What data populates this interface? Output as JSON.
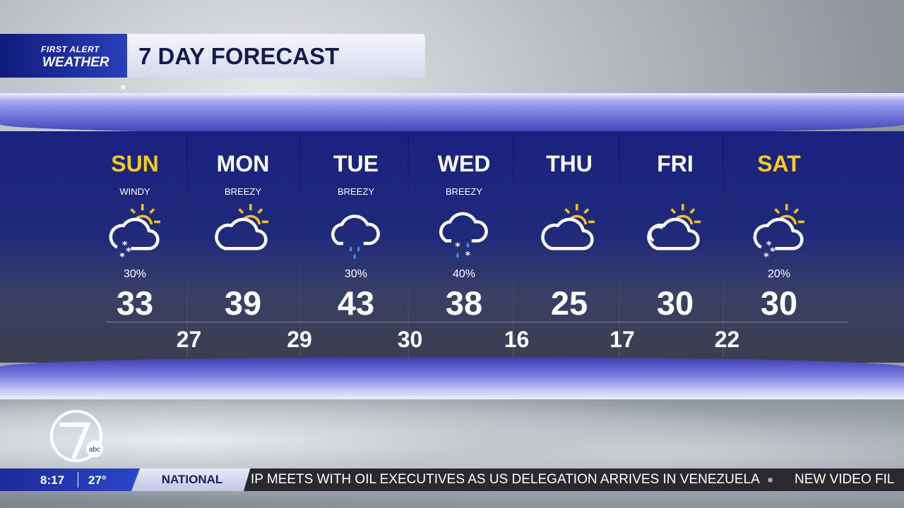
{
  "header": {
    "brand_line1": "FIRST ALERT",
    "brand_line2": "WEATHER",
    "title": "7 DAY FORECAST"
  },
  "colors": {
    "weekend_day": "#f7cc1a",
    "weekday": "#ffffff",
    "sun": "#f2c21a",
    "rain": "#2f9be6"
  },
  "days": [
    {
      "day": "SUN",
      "cond": "WINDY",
      "icon": "partly-cloudy-snow",
      "pop": "30%",
      "hi": "33",
      "lo": "27",
      "weekend": true
    },
    {
      "day": "MON",
      "cond": "BREEZY",
      "icon": "partly-cloudy",
      "pop": "",
      "hi": "39",
      "lo": "29",
      "weekend": false
    },
    {
      "day": "TUE",
      "cond": "BREEZY",
      "icon": "rain",
      "pop": "30%",
      "hi": "43",
      "lo": "30",
      "weekend": false
    },
    {
      "day": "WED",
      "cond": "BREEZY",
      "icon": "rain-snow-mix",
      "pop": "40%",
      "hi": "38",
      "lo": "16",
      "weekend": false
    },
    {
      "day": "THU",
      "cond": "",
      "icon": "partly-cloudy",
      "pop": "",
      "hi": "25",
      "lo": "17",
      "weekend": false
    },
    {
      "day": "FRI",
      "cond": "",
      "icon": "mostly-cloudy",
      "pop": "",
      "hi": "30",
      "lo": "22",
      "weekend": false
    },
    {
      "day": "SAT",
      "cond": "",
      "icon": "partly-cloudy-snow",
      "pop": "20%",
      "hi": "30",
      "weekend": true
    }
  ],
  "ticker": {
    "time": "8:17",
    "temp": "27°",
    "category": "NATIONAL",
    "headline": "IP MEETS WITH OIL EXECUTIVES AS US DELEGATION ARRIVES IN VENEZUELA",
    "next": "NEW VIDEO FIL"
  },
  "station_logo": "7 abc"
}
